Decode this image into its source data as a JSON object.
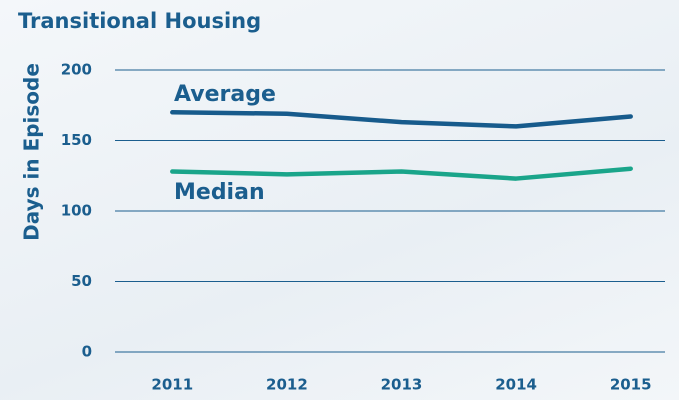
{
  "chart_data": {
    "type": "line",
    "title": "Transitional Housing",
    "y_label": "Days in Episode",
    "categories": [
      "2011",
      "2012",
      "2013",
      "2014",
      "2015"
    ],
    "series": [
      {
        "name": "Average",
        "color": "#175b8c",
        "values": [
          170,
          169,
          163,
          160,
          167
        ]
      },
      {
        "name": "Median",
        "color": "#1aa58a",
        "values": [
          128,
          126,
          128,
          123,
          130
        ]
      }
    ],
    "ylim": [
      0,
      200
    ],
    "yticks": [
      0,
      50,
      100,
      150,
      200
    ],
    "grid": true
  }
}
